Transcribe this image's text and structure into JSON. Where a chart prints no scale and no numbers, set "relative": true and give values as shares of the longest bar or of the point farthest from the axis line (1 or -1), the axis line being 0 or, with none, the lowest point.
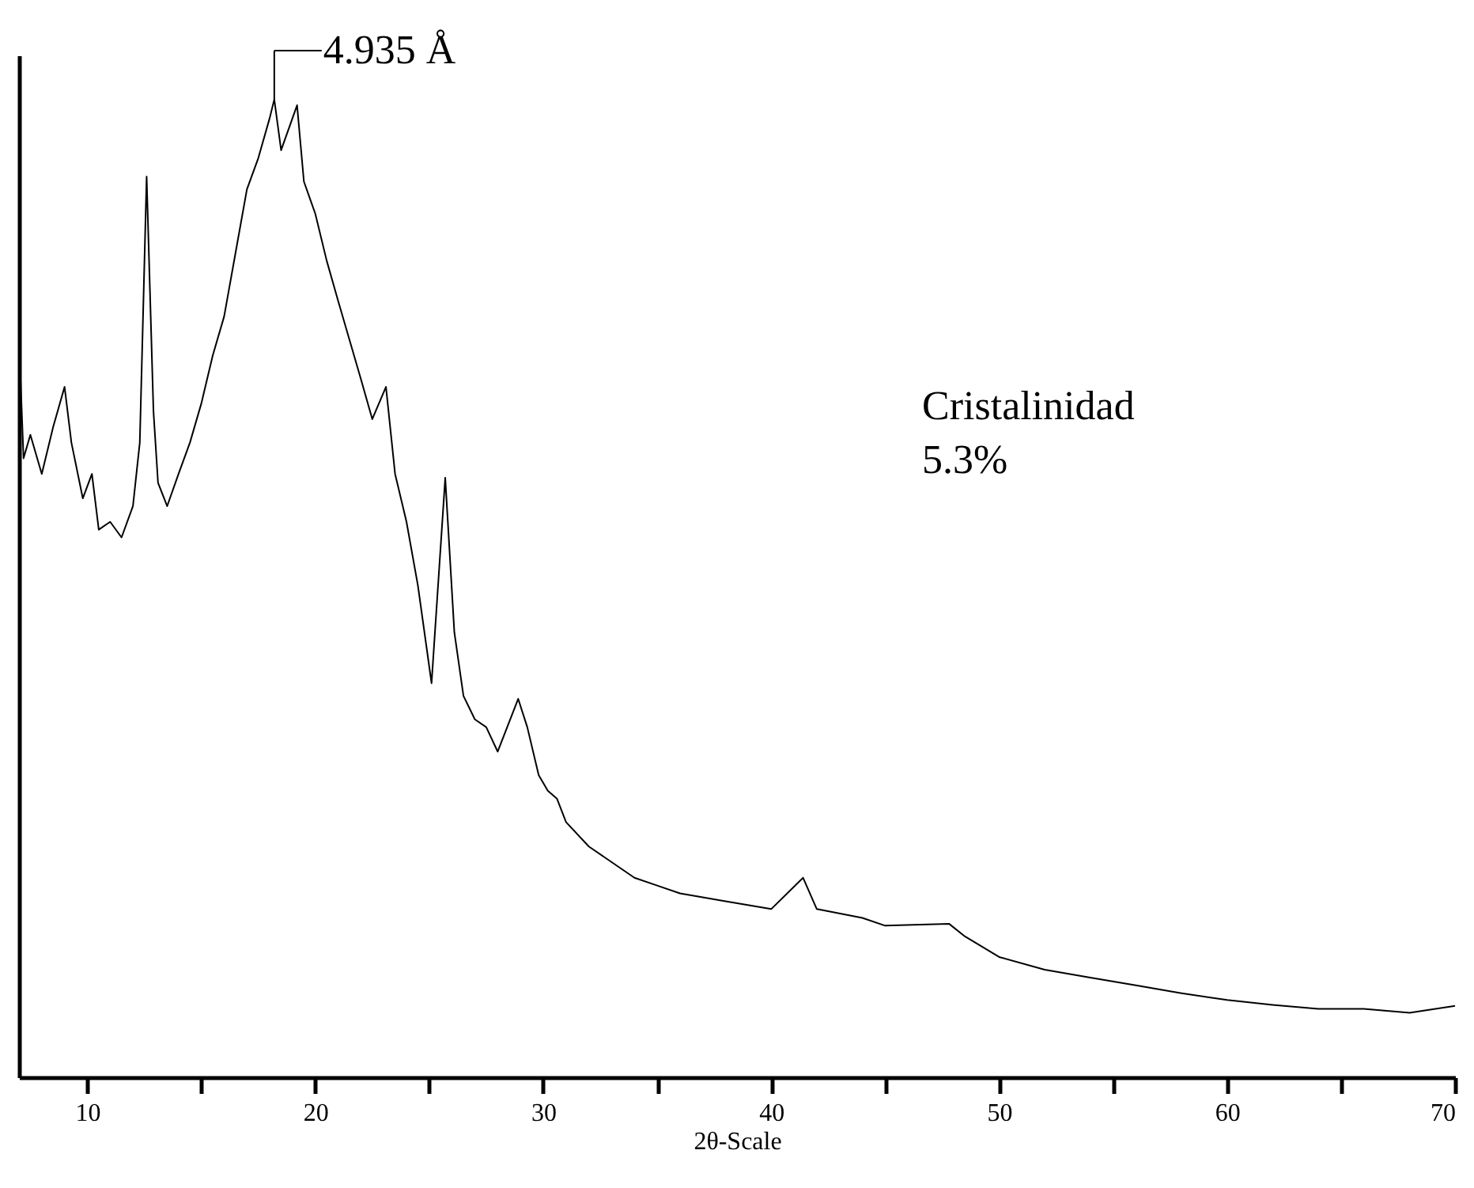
{
  "chart_data": {
    "type": "line",
    "relative": true,
    "xlabel": "2θ-Scale",
    "xlim": [
      7,
      70
    ],
    "xticks": [
      10,
      {
        "value": 15,
        "label": null
      },
      20,
      {
        "value": 25,
        "label": null
      },
      30,
      {
        "value": 35,
        "label": null
      },
      40,
      {
        "value": 45,
        "label": null
      },
      50,
      {
        "value": 55,
        "label": null
      },
      60,
      {
        "value": 65,
        "label": null
      },
      70
    ],
    "grid": false,
    "legend": false,
    "marker": "none",
    "line_style": "solid",
    "annotations": [
      {
        "text": "4.935 Å",
        "x": 18.2,
        "y": 1
      },
      "Cristalinidad",
      "5.3%"
    ],
    "series": [
      {
        "color": "#000000",
        "x": [
          7.05,
          7.2,
          7.5,
          8.0,
          8.5,
          9.0,
          9.3,
          9.8,
          10.2,
          10.5,
          11.0,
          11.5,
          12.0,
          12.3,
          12.6,
          12.9,
          13.1,
          13.5,
          14.0,
          14.5,
          15.0,
          15.5,
          16.0,
          16.5,
          17.0,
          17.5,
          18.0,
          18.2,
          18.5,
          19.2,
          19.5,
          20.0,
          20.5,
          21.0,
          21.5,
          22.0,
          22.5,
          23.1,
          23.5,
          24.0,
          24.5,
          25.1,
          25.7,
          26.1,
          26.5,
          27.0,
          27.5,
          28.0,
          28.9,
          29.3,
          29.8,
          30.2,
          30.6,
          31.0,
          32.0,
          33.0,
          34.0,
          35.0,
          36.0,
          38.0,
          40.0,
          41.4,
          42.0,
          44.0,
          45.0,
          47.8,
          48.5,
          50.0,
          52.0,
          54.0,
          56.0,
          58.0,
          60.0,
          62.0,
          64.0,
          66.0,
          68.0,
          70.0
        ],
        "values": [
          0.725,
          0.633,
          0.657,
          0.617,
          0.665,
          0.706,
          0.649,
          0.592,
          0.617,
          0.56,
          0.568,
          0.552,
          0.584,
          0.649,
          0.921,
          0.681,
          0.608,
          0.584,
          0.617,
          0.649,
          0.689,
          0.738,
          0.778,
          0.843,
          0.908,
          0.94,
          0.981,
          1,
          0.948,
          0.994,
          0.916,
          0.883,
          0.835,
          0.794,
          0.754,
          0.714,
          0.673,
          0.706,
          0.617,
          0.568,
          0.503,
          0.403,
          0.613,
          0.455,
          0.39,
          0.366,
          0.358,
          0.333,
          0.387,
          0.358,
          0.309,
          0.293,
          0.285,
          0.261,
          0.236,
          0.22,
          0.204,
          0.196,
          0.188,
          0.18,
          0.172,
          0.204,
          0.172,
          0.163,
          0.155,
          0.157,
          0.144,
          0.123,
          0.11,
          0.102,
          0.094,
          0.086,
          0.079,
          0.074,
          0.07,
          0.07,
          0.066,
          0.073
        ]
      }
    ]
  }
}
